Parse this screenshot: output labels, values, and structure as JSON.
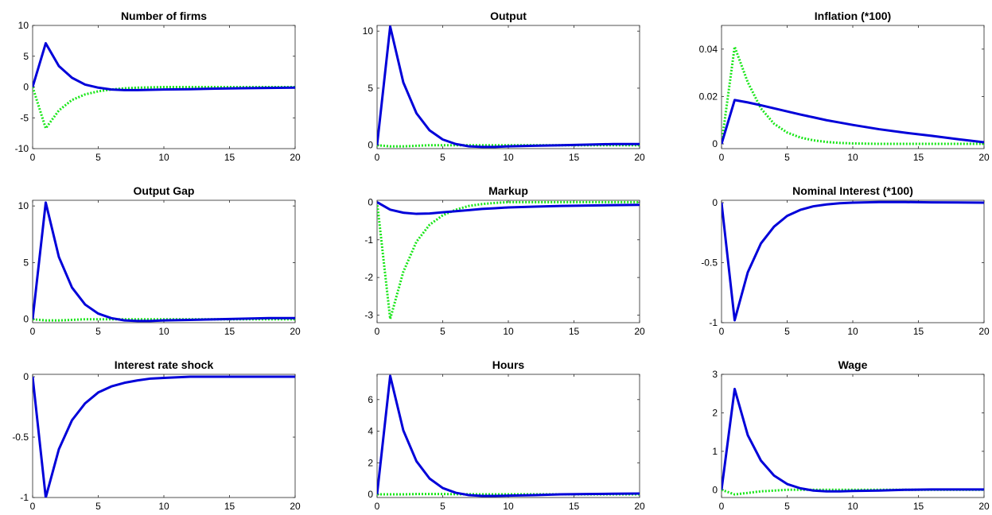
{
  "chart_data": [
    {
      "type": "line",
      "title": "Number of firms",
      "xlabel": "",
      "ylabel": "",
      "xlim": [
        0,
        20
      ],
      "ylim": [
        -10,
        10
      ],
      "xticks": [
        0,
        5,
        10,
        15,
        20
      ],
      "yticks": [
        -10,
        -5,
        0,
        5,
        10
      ],
      "grid": false,
      "series": [
        {
          "color": "#0000d9",
          "style": "solid",
          "x": [
            0,
            1,
            2,
            3,
            4,
            5,
            6,
            7,
            8,
            9,
            10,
            12,
            14,
            16,
            18,
            20
          ],
          "y": [
            0,
            7.1,
            3.4,
            1.5,
            0.4,
            -0.1,
            -0.4,
            -0.5,
            -0.5,
            -0.45,
            -0.4,
            -0.35,
            -0.25,
            -0.2,
            -0.15,
            -0.1
          ]
        },
        {
          "color": "#19e619",
          "style": "dotted",
          "x": [
            0,
            1,
            2,
            3,
            4,
            5,
            6,
            7,
            8,
            9,
            10,
            12,
            14,
            16,
            18,
            20
          ],
          "y": [
            0,
            -6.7,
            -3.8,
            -2.1,
            -1.2,
            -0.7,
            -0.4,
            -0.2,
            -0.1,
            -0.05,
            0,
            0,
            0,
            0,
            0,
            0
          ]
        }
      ]
    },
    {
      "type": "line",
      "title": "Output",
      "xlabel": "",
      "ylabel": "",
      "xlim": [
        0,
        20
      ],
      "ylim": [
        -0.3,
        10.5
      ],
      "xticks": [
        0,
        5,
        10,
        15,
        20
      ],
      "yticks": [
        0,
        5,
        10
      ],
      "grid": false,
      "series": [
        {
          "color": "#0000d9",
          "style": "solid",
          "x": [
            0,
            1,
            2,
            3,
            4,
            5,
            6,
            7,
            8,
            9,
            10,
            12,
            14,
            16,
            18,
            20
          ],
          "y": [
            0,
            10.4,
            5.5,
            2.8,
            1.3,
            0.5,
            0.1,
            -0.1,
            -0.15,
            -0.15,
            -0.1,
            -0.05,
            0,
            0.05,
            0.1,
            0.1
          ]
        },
        {
          "color": "#19e619",
          "style": "dotted",
          "x": [
            0,
            1,
            2,
            3,
            4,
            5,
            6,
            7,
            8,
            9,
            10,
            12,
            14,
            16,
            18,
            20
          ],
          "y": [
            0,
            -0.1,
            -0.1,
            -0.05,
            0,
            0,
            0,
            0,
            0,
            0,
            0,
            0,
            0,
            0,
            0,
            0
          ]
        }
      ]
    },
    {
      "type": "line",
      "title": "Inflation (*100)",
      "xlabel": "",
      "ylabel": "",
      "xlim": [
        0,
        20
      ],
      "ylim": [
        -0.002,
        0.05
      ],
      "xticks": [
        0,
        5,
        10,
        15,
        20
      ],
      "yticks": [
        0,
        0.02,
        0.04
      ],
      "grid": false,
      "series": [
        {
          "color": "#0000d9",
          "style": "solid",
          "x": [
            0,
            1,
            2,
            3,
            4,
            5,
            6,
            7,
            8,
            9,
            10,
            12,
            14,
            16,
            18,
            20
          ],
          "y": [
            0,
            0.0185,
            0.0175,
            0.0163,
            0.015,
            0.0137,
            0.0124,
            0.0112,
            0.01,
            0.009,
            0.008,
            0.0062,
            0.0047,
            0.0034,
            0.002,
            0.0007
          ]
        },
        {
          "color": "#19e619",
          "style": "dotted",
          "x": [
            0,
            1,
            2,
            3,
            4,
            5,
            6,
            7,
            8,
            9,
            10,
            12,
            14,
            16,
            18,
            20
          ],
          "y": [
            0,
            0.041,
            0.026,
            0.015,
            0.0085,
            0.0048,
            0.0027,
            0.0015,
            0.0008,
            0.0004,
            0.0002,
            0,
            0,
            0,
            0,
            0
          ]
        }
      ]
    },
    {
      "type": "line",
      "title": "Output Gap",
      "xlabel": "",
      "ylabel": "",
      "xlim": [
        0,
        20
      ],
      "ylim": [
        -0.3,
        10.5
      ],
      "xticks": [
        0,
        5,
        10,
        15,
        20
      ],
      "yticks": [
        0,
        5,
        10
      ],
      "grid": false,
      "series": [
        {
          "color": "#0000d9",
          "style": "solid",
          "x": [
            0,
            1,
            2,
            3,
            4,
            5,
            6,
            7,
            8,
            9,
            10,
            12,
            14,
            16,
            18,
            20
          ],
          "y": [
            0,
            10.3,
            5.5,
            2.8,
            1.3,
            0.5,
            0.1,
            -0.1,
            -0.15,
            -0.15,
            -0.1,
            -0.05,
            0,
            0.05,
            0.1,
            0.1
          ]
        },
        {
          "color": "#19e619",
          "style": "dotted",
          "x": [
            0,
            1,
            2,
            3,
            4,
            5,
            6,
            7,
            8,
            9,
            10,
            12,
            14,
            16,
            18,
            20
          ],
          "y": [
            0,
            -0.1,
            -0.1,
            -0.05,
            0,
            0,
            0,
            0,
            0,
            0,
            0,
            0,
            0,
            0,
            0,
            0
          ]
        }
      ]
    },
    {
      "type": "line",
      "title": "Markup",
      "xlabel": "",
      "ylabel": "",
      "xlim": [
        0,
        20
      ],
      "ylim": [
        -3.2,
        0.05
      ],
      "xticks": [
        0,
        5,
        10,
        15,
        20
      ],
      "yticks": [
        -3,
        -2,
        -1,
        0
      ],
      "grid": false,
      "series": [
        {
          "color": "#0000d9",
          "style": "solid",
          "x": [
            0,
            1,
            2,
            3,
            4,
            5,
            6,
            7,
            8,
            9,
            10,
            12,
            14,
            16,
            18,
            20
          ],
          "y": [
            0,
            -0.2,
            -0.28,
            -0.31,
            -0.3,
            -0.27,
            -0.24,
            -0.21,
            -0.18,
            -0.16,
            -0.14,
            -0.12,
            -0.1,
            -0.09,
            -0.08,
            -0.07
          ]
        },
        {
          "color": "#19e619",
          "style": "dotted",
          "x": [
            0,
            1,
            2,
            3,
            4,
            5,
            6,
            7,
            8,
            9,
            10,
            12,
            14,
            16,
            18,
            20
          ],
          "y": [
            0,
            -3.1,
            -1.85,
            -1.05,
            -0.6,
            -0.35,
            -0.2,
            -0.1,
            -0.05,
            -0.02,
            0,
            0,
            0,
            0,
            0,
            0
          ]
        }
      ]
    },
    {
      "type": "line",
      "title": "Nominal Interest (*100)",
      "xlabel": "",
      "ylabel": "",
      "xlim": [
        0,
        20
      ],
      "ylim": [
        -1,
        0.02
      ],
      "xticks": [
        0,
        5,
        10,
        15,
        20
      ],
      "yticks": [
        -1,
        -0.5,
        0
      ],
      "grid": false,
      "series": [
        {
          "color": "#0000d9",
          "style": "solid",
          "x": [
            0,
            1,
            2,
            3,
            4,
            5,
            6,
            7,
            8,
            9,
            10,
            12,
            14,
            16,
            18,
            20
          ],
          "y": [
            0,
            -0.98,
            -0.58,
            -0.34,
            -0.2,
            -0.11,
            -0.06,
            -0.03,
            -0.015,
            -0.005,
            0,
            0.005,
            0.005,
            0.003,
            0.002,
            0
          ]
        }
      ]
    },
    {
      "type": "line",
      "title": "Interest rate shock",
      "xlabel": "",
      "ylabel": "",
      "xlim": [
        0,
        20
      ],
      "ylim": [
        -1,
        0.02
      ],
      "xticks": [
        0,
        5,
        10,
        15,
        20
      ],
      "yticks": [
        -1,
        -0.5,
        0
      ],
      "grid": false,
      "series": [
        {
          "color": "#0000d9",
          "style": "solid",
          "x": [
            0,
            1,
            2,
            3,
            4,
            5,
            6,
            7,
            8,
            9,
            10,
            12,
            14,
            16,
            18,
            20
          ],
          "y": [
            0,
            -1,
            -0.6,
            -0.36,
            -0.22,
            -0.13,
            -0.08,
            -0.05,
            -0.03,
            -0.015,
            -0.01,
            0,
            0,
            0,
            0,
            0
          ]
        }
      ]
    },
    {
      "type": "line",
      "title": "Hours",
      "xlabel": "",
      "ylabel": "",
      "xlim": [
        0,
        20
      ],
      "ylim": [
        -0.2,
        7.6
      ],
      "xticks": [
        0,
        5,
        10,
        15,
        20
      ],
      "yticks": [
        0,
        2,
        4,
        6
      ],
      "grid": false,
      "series": [
        {
          "color": "#0000d9",
          "style": "solid",
          "x": [
            0,
            1,
            2,
            3,
            4,
            5,
            6,
            7,
            8,
            9,
            10,
            12,
            14,
            16,
            18,
            20
          ],
          "y": [
            0,
            7.5,
            4.05,
            2.1,
            1.0,
            0.4,
            0.1,
            -0.05,
            -0.1,
            -0.1,
            -0.08,
            -0.05,
            0,
            0.02,
            0.04,
            0.05
          ]
        },
        {
          "color": "#19e619",
          "style": "dotted",
          "x": [
            0,
            1,
            2,
            3,
            4,
            5,
            6,
            7,
            8,
            9,
            10,
            12,
            14,
            16,
            18,
            20
          ],
          "y": [
            0,
            0,
            0,
            0.02,
            0.02,
            0.02,
            0.01,
            0.01,
            0,
            0,
            0,
            0,
            0,
            0,
            0,
            0
          ]
        }
      ]
    },
    {
      "type": "line",
      "title": "Wage",
      "xlabel": "",
      "ylabel": "",
      "xlim": [
        0,
        20
      ],
      "ylim": [
        -0.2,
        3
      ],
      "xticks": [
        0,
        5,
        10,
        15,
        20
      ],
      "yticks": [
        0,
        1,
        2,
        3
      ],
      "grid": false,
      "series": [
        {
          "color": "#0000d9",
          "style": "solid",
          "x": [
            0,
            1,
            2,
            3,
            4,
            5,
            6,
            7,
            8,
            9,
            10,
            12,
            14,
            16,
            18,
            20
          ],
          "y": [
            0,
            2.62,
            1.42,
            0.76,
            0.37,
            0.15,
            0.04,
            -0.02,
            -0.04,
            -0.04,
            -0.03,
            -0.02,
            0,
            0.01,
            0.01,
            0.01
          ]
        },
        {
          "color": "#19e619",
          "style": "dotted",
          "x": [
            0,
            1,
            2,
            3,
            4,
            5,
            6,
            7,
            8,
            9,
            10,
            12,
            14,
            16,
            18,
            20
          ],
          "y": [
            0,
            -0.12,
            -0.08,
            -0.04,
            -0.02,
            0,
            0,
            0,
            0,
            0,
            0,
            0,
            0,
            0,
            0,
            0
          ]
        }
      ]
    }
  ]
}
